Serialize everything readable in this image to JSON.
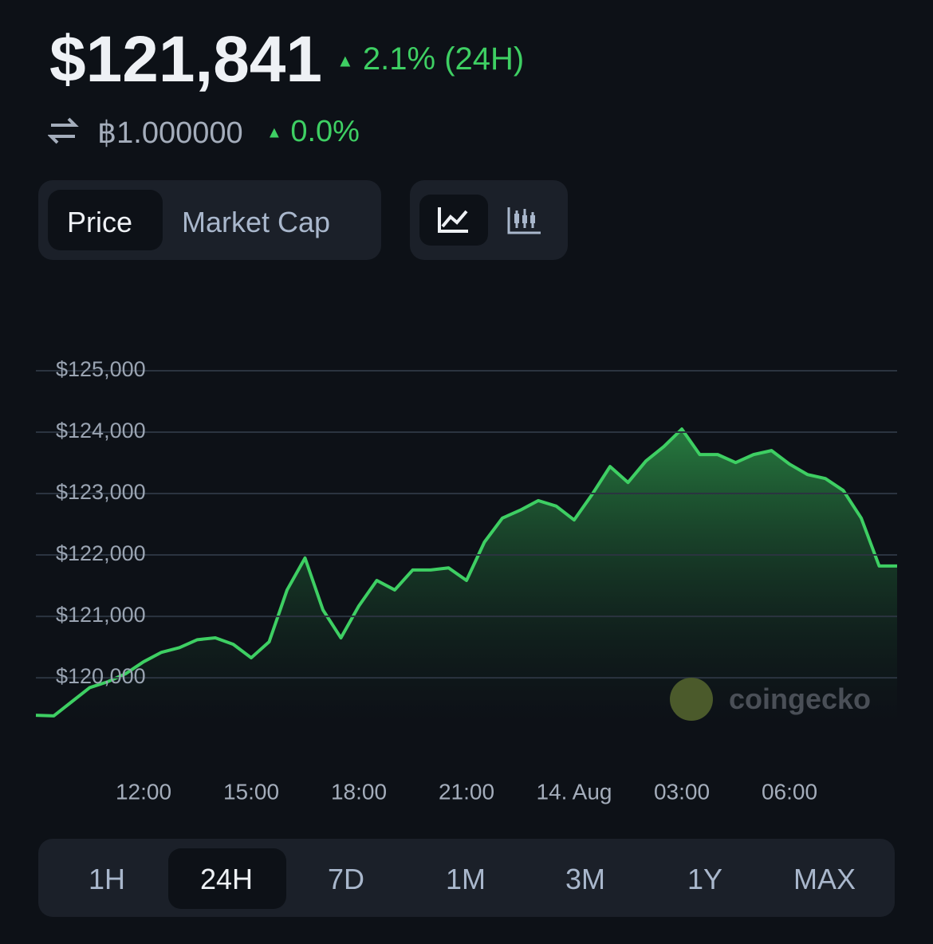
{
  "header": {
    "price": "$121,841",
    "price_change": "2.1% (24H)",
    "btc_price": "฿1.000000",
    "btc_change": "0.0%"
  },
  "tabs": [
    "Price",
    "Market Cap"
  ],
  "ranges": [
    "1H",
    "24H",
    "7D",
    "1M",
    "3M",
    "1Y",
    "MAX"
  ],
  "watermark": "coingecko",
  "chart_data": {
    "type": "line",
    "color": "#3ecf63",
    "grid": true,
    "categories": [
      null,
      null,
      null,
      null,
      null,
      null,
      "12:00",
      null,
      null,
      null,
      null,
      null,
      "15:00",
      null,
      null,
      null,
      null,
      null,
      "18:00",
      null,
      null,
      null,
      null,
      null,
      "21:00",
      null,
      null,
      null,
      null,
      null,
      "14. Aug",
      null,
      null,
      null,
      null,
      null,
      "03:00",
      null,
      null,
      null,
      null,
      null,
      "06:00",
      null,
      null,
      null,
      null,
      null,
      null
    ],
    "values": [
      119390,
      119380,
      119610,
      119840,
      119935,
      120065,
      120260,
      120415,
      120490,
      120620,
      120650,
      120545,
      120325,
      120585,
      121430,
      121950,
      121105,
      120650,
      121170,
      121585,
      121430,
      121755,
      121755,
      121790,
      121585,
      122210,
      122600,
      122730,
      122885,
      122795,
      122570,
      122985,
      123440,
      123180,
      123530,
      123765,
      124050,
      123635,
      123635,
      123505,
      123635,
      123700,
      123480,
      123310,
      123245,
      123050,
      122600,
      121820,
      121820
    ],
    "ylim": [
      119300,
      125000
    ],
    "yticks": [
      {
        "value": 120000,
        "label": "$120,000"
      },
      {
        "value": 121000,
        "label": "$121,000"
      },
      {
        "value": 122000,
        "label": "$122,000"
      },
      {
        "value": 123000,
        "label": "$123,000"
      },
      {
        "value": 124000,
        "label": "$124,000"
      },
      {
        "value": 125000,
        "label": "$125,000"
      }
    ]
  }
}
